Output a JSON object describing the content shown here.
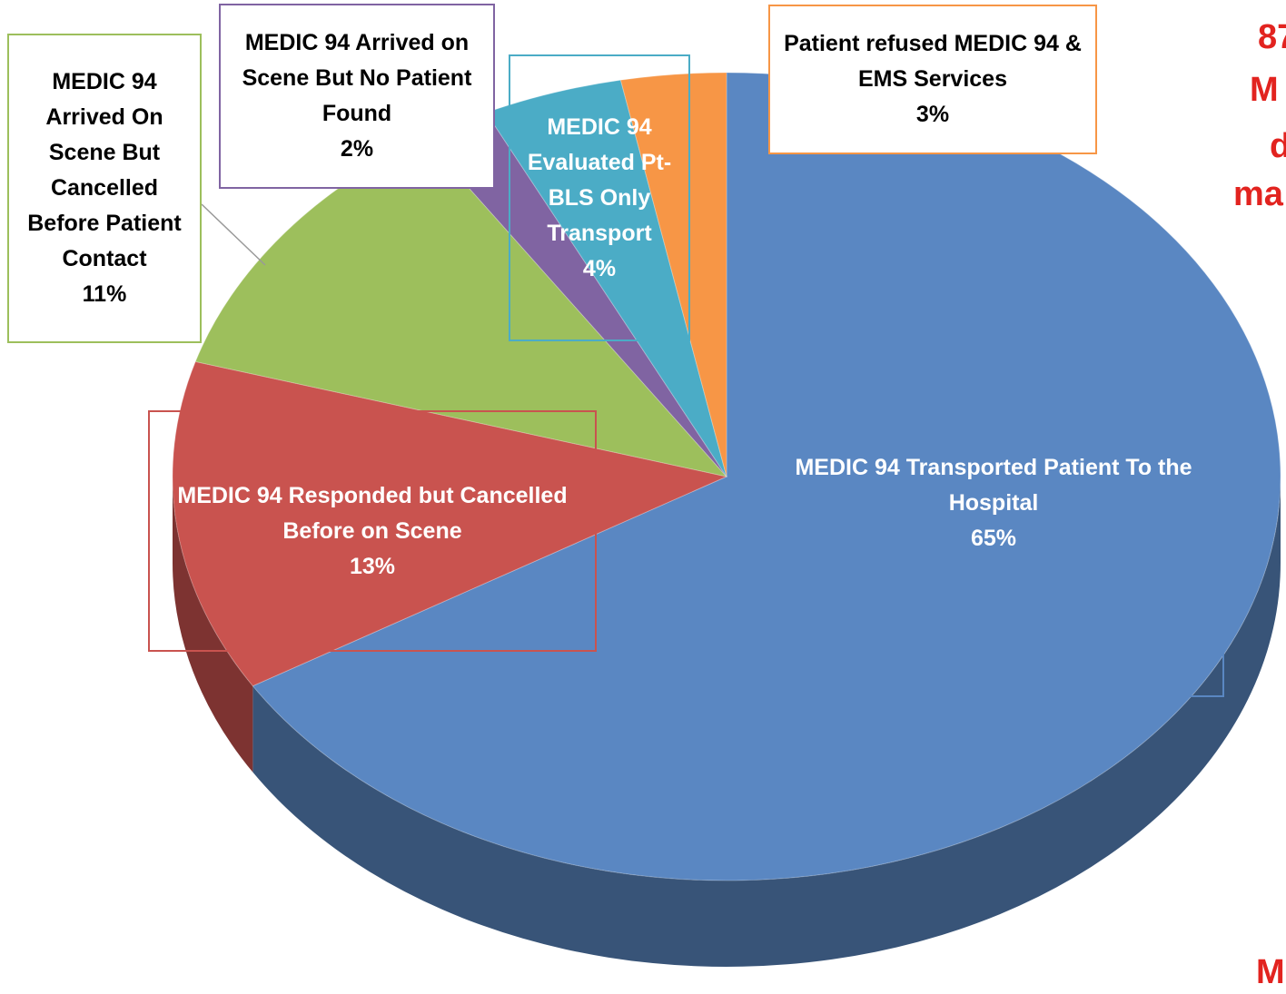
{
  "chart_data": {
    "type": "pie",
    "categories": [
      "MEDIC 94 Transported Patient To the Hospital",
      "MEDIC 94 Responded but Cancelled Before on Scene",
      "MEDIC 94 Arrived On Scene But Cancelled Before Patient Contact",
      "MEDIC 94 Arrived on Scene But No Patient Found",
      "MEDIC 94 Evaluated Pt- BLS Only Transport",
      "Patient refused MEDIC 94 & EMS Services"
    ],
    "values": [
      65,
      13,
      11,
      2,
      4,
      3
    ],
    "value_labels": [
      "65%",
      "13%",
      "11%",
      "2%",
      "4%",
      "3%"
    ],
    "colors": [
      "#5a87c2",
      "#c9534f",
      "#9dbf5c",
      "#8064a2",
      "#4bacc6",
      "#f79646"
    ],
    "annotations": [
      "87",
      "M",
      "d",
      "ma",
      "M"
    ]
  }
}
